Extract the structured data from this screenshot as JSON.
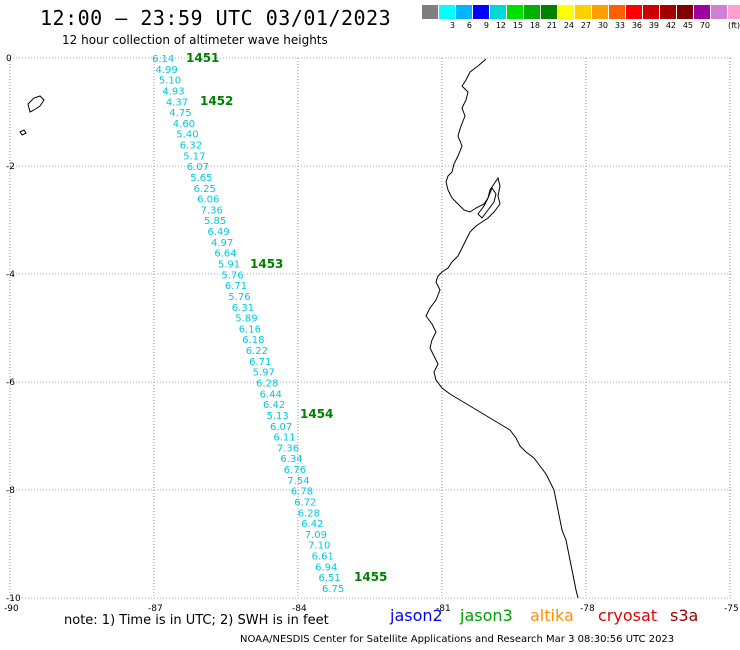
{
  "header": {
    "title": "12:00 – 23:59 UTC 03/01/2023",
    "subtitle": "12 hour collection of altimeter wave heights"
  },
  "color_scale": {
    "colors": [
      "#7f7f7f",
      "#00ffff",
      "#00b4ff",
      "#0000ff",
      "#00d8d8",
      "#00e000",
      "#00b000",
      "#008000",
      "#ffff00",
      "#ffd000",
      "#ffa000",
      "#ff6000",
      "#ff0000",
      "#d00000",
      "#a00000",
      "#800000",
      "#a000a0",
      "#d080d0",
      "#ffa0d0",
      "#000000"
    ],
    "labels": [
      "",
      "3",
      "6",
      "9",
      "12",
      "15",
      "18",
      "21",
      "24",
      "27",
      "30",
      "33",
      "36",
      "39",
      "42",
      "45",
      "70"
    ],
    "unit": "(ft)"
  },
  "axes": {
    "y_labels": [
      "0",
      "-2",
      "-4",
      "-6",
      "-8",
      "-10"
    ],
    "x_labels": [
      "-90",
      "-87",
      "-84",
      "-81",
      "-78",
      "-75"
    ]
  },
  "track": {
    "color": "#00c8e0",
    "values": [
      "6.14",
      "4.99",
      "5.10",
      "4.93",
      "4.37",
      "4.75",
      "4.60",
      "5.40",
      "6.32",
      "5.17",
      "6.07",
      "5.65",
      "6.25",
      "6.06",
      "7.36",
      "5.85",
      "6.49",
      "4.97",
      "6.64",
      "5.91",
      "5.76",
      "6.71",
      "5.76",
      "6.31",
      "5.89",
      "6.16",
      "6.18",
      "6.22",
      "6.71",
      "5.97",
      "6.28",
      "6.44",
      "6.42",
      "5.13",
      "6.07",
      "6.11",
      "7.36",
      "6.34",
      "6.76",
      "7.54",
      "6.78",
      "6.72",
      "6.28",
      "6.42",
      "7.09",
      "7.10",
      "6.61",
      "6.94",
      "6.51",
      "6.75"
    ]
  },
  "time_markers": [
    "1451",
    "1452",
    "1453",
    "1454",
    "1455"
  ],
  "marker_color": "#008000",
  "footer": {
    "note": "note:  1) Time is in UTC;  2) SWH is in feet",
    "satellites": [
      {
        "name": "jason2",
        "color": "#0000ff"
      },
      {
        "name": "jason3",
        "color": "#00a000"
      },
      {
        "name": "altika",
        "color": "#ff9000"
      },
      {
        "name": "cryosat",
        "color": "#e00000"
      },
      {
        "name": "s3a",
        "color": "#a00000"
      }
    ],
    "credit": "NOAA/NESDIS Center for Satellite Applications and Research    Mar  3 08:30:56 UTC 2023"
  }
}
